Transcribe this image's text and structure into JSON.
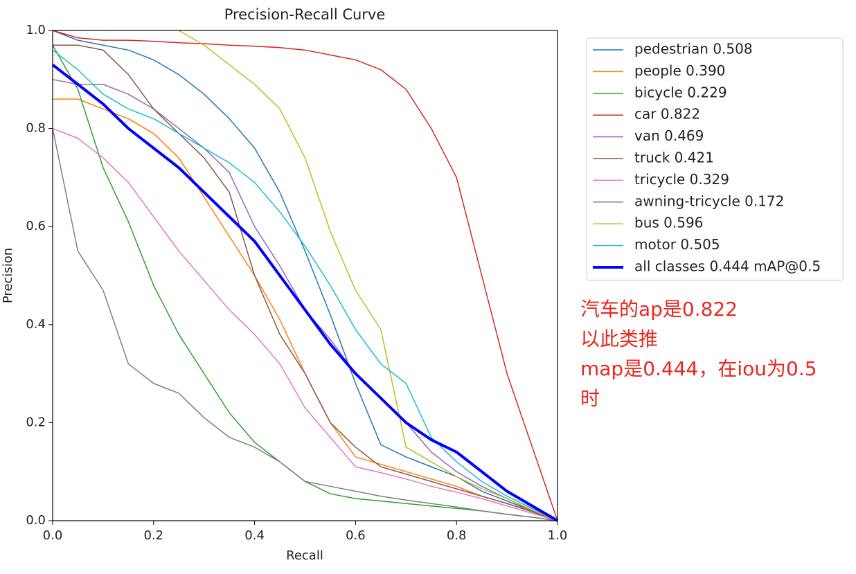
{
  "chart_data": {
    "type": "line",
    "title": "Precision-Recall Curve",
    "x_label": "Recall",
    "y_label": "Precision",
    "x": [
      0,
      0.05,
      0.1,
      0.15,
      0.2,
      0.25,
      0.3,
      0.35,
      0.4,
      0.45,
      0.5,
      0.55,
      0.6,
      0.65,
      0.7,
      0.75,
      0.8,
      0.85,
      0.9,
      0.95,
      1.0
    ],
    "xlim": [
      0,
      1
    ],
    "ylim": [
      0,
      1
    ],
    "xticks": [
      {
        "value": 0,
        "label": "0.0"
      },
      0.2,
      0.4,
      0.6,
      0.8,
      {
        "value": 1,
        "label": "1.0"
      }
    ],
    "yticks": [
      {
        "value": 0,
        "label": "0.0"
      },
      0.2,
      0.4,
      0.6,
      0.8,
      {
        "value": 1,
        "label": "1.0"
      }
    ],
    "legend": "upper right outside",
    "series": [
      {
        "name": "pedestrian 0.508",
        "color": "#1f77b4",
        "values": [
          1.0,
          0.98,
          0.97,
          0.96,
          0.94,
          0.91,
          0.87,
          0.82,
          0.76,
          0.67,
          0.55,
          0.42,
          0.28,
          0.155,
          0.13,
          0.11,
          0.09,
          0.06,
          0.04,
          0.02,
          0
        ]
      },
      {
        "name": "people 0.390",
        "color": "#ff7f0e",
        "values": [
          0.86,
          0.86,
          0.84,
          0.82,
          0.79,
          0.74,
          0.66,
          0.58,
          0.5,
          0.41,
          0.3,
          0.2,
          0.13,
          0.115,
          0.1,
          0.085,
          0.07,
          0.05,
          0.035,
          0.02,
          0
        ]
      },
      {
        "name": "bicycle 0.229",
        "color": "#2ca02c",
        "values": [
          0.97,
          0.88,
          0.72,
          0.61,
          0.48,
          0.38,
          0.3,
          0.22,
          0.16,
          0.12,
          0.08,
          0.055,
          0.045,
          0.04,
          0.035,
          0.03,
          0.025,
          0.02,
          0.013,
          0.007,
          0
        ]
      },
      {
        "name": "car 0.822",
        "color": "#d62728",
        "values": [
          1.0,
          0.985,
          0.98,
          0.98,
          0.978,
          0.975,
          0.973,
          0.97,
          0.968,
          0.965,
          0.96,
          0.95,
          0.94,
          0.92,
          0.88,
          0.8,
          0.7,
          0.5,
          0.3,
          0.15,
          0
        ]
      },
      {
        "name": "van 0.469",
        "color": "#9467bd",
        "values": [
          0.9,
          0.89,
          0.89,
          0.87,
          0.84,
          0.8,
          0.76,
          0.71,
          0.6,
          0.52,
          0.43,
          0.37,
          0.3,
          0.25,
          0.2,
          0.14,
          0.1,
          0.07,
          0.045,
          0.02,
          0
        ]
      },
      {
        "name": "truck 0.421",
        "color": "#8c564b",
        "values": [
          0.97,
          0.97,
          0.96,
          0.91,
          0.84,
          0.79,
          0.74,
          0.67,
          0.5,
          0.38,
          0.3,
          0.2,
          0.15,
          0.11,
          0.095,
          0.08,
          0.065,
          0.05,
          0.035,
          0.018,
          0
        ]
      },
      {
        "name": "tricycle 0.329",
        "color": "#e377c2",
        "values": [
          0.8,
          0.78,
          0.74,
          0.69,
          0.62,
          0.55,
          0.49,
          0.43,
          0.38,
          0.32,
          0.23,
          0.17,
          0.11,
          0.098,
          0.085,
          0.07,
          0.058,
          0.045,
          0.03,
          0.015,
          0
        ]
      },
      {
        "name": "awning-tricycle 0.172",
        "color": "#7f7f7f",
        "values": [
          0.8,
          0.55,
          0.47,
          0.32,
          0.28,
          0.26,
          0.21,
          0.17,
          0.15,
          0.12,
          0.08,
          0.07,
          0.06,
          0.05,
          0.042,
          0.035,
          0.028,
          0.02,
          0.013,
          0.007,
          0
        ]
      },
      {
        "name": "bus 0.596",
        "color": "#bcbd22",
        "values": [
          null,
          null,
          null,
          null,
          null,
          1.0,
          0.97,
          0.93,
          0.89,
          0.84,
          0.74,
          0.59,
          0.47,
          0.39,
          0.15,
          0.12,
          0.09,
          0.065,
          0.045,
          0.022,
          0
        ]
      },
      {
        "name": "motor 0.505",
        "color": "#17becf",
        "values": [
          0.96,
          0.92,
          0.87,
          0.84,
          0.82,
          0.79,
          0.76,
          0.73,
          0.69,
          0.63,
          0.56,
          0.48,
          0.39,
          0.32,
          0.28,
          0.17,
          0.12,
          0.08,
          0.05,
          0.025,
          0
        ]
      },
      {
        "name": "all classes 0.444 mAP@0.5",
        "color": "#0000ff",
        "linewidth": 4,
        "values": [
          0.93,
          0.89,
          0.85,
          0.8,
          0.76,
          0.72,
          0.67,
          0.62,
          0.57,
          0.5,
          0.43,
          0.36,
          0.3,
          0.25,
          0.2,
          0.165,
          0.14,
          0.1,
          0.06,
          0.03,
          0
        ]
      }
    ],
    "annotations": [
      "汽车的ap是0.822",
      "以此类推",
      "map是0.444，在iou为0.5",
      "时"
    ]
  }
}
